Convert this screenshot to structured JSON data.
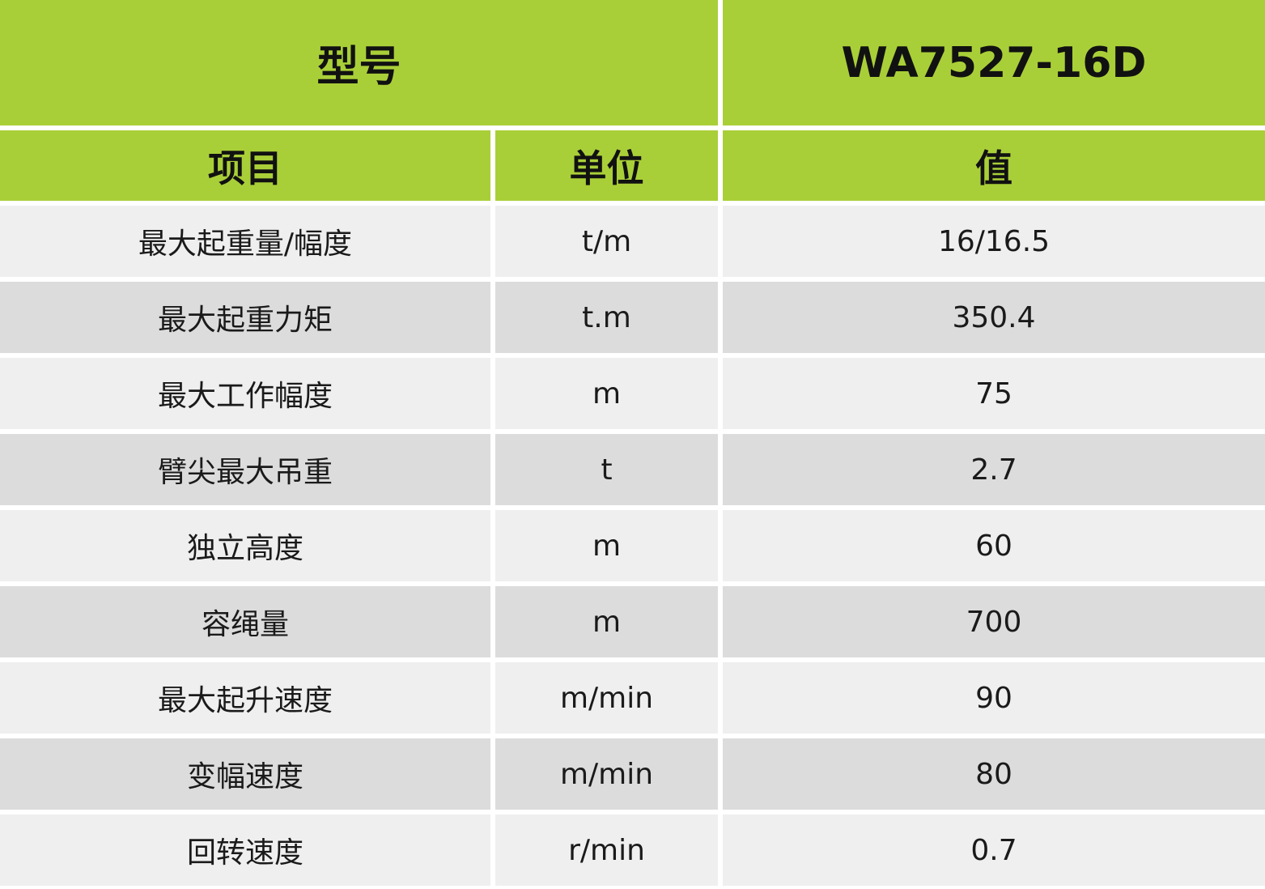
{
  "header": {
    "model_label": "型号",
    "model": "WA7527-16D"
  },
  "table": {
    "columns": [
      "项目",
      "单位",
      "值"
    ],
    "rows": [
      [
        "最大起重量/幅度",
        "t/m",
        "16/16.5"
      ],
      [
        "最大起重力矩",
        "t.m",
        "350.4"
      ],
      [
        "最大工作幅度",
        "m",
        "75"
      ],
      [
        "臂尖最大吊重",
        "t",
        "2.7"
      ],
      [
        "独立高度",
        "m",
        "60"
      ],
      [
        "容绳量",
        "m",
        "700"
      ],
      [
        "最大起升速度",
        "m/min",
        "90"
      ],
      [
        "变幅速度",
        "m/min",
        "80"
      ],
      [
        "回转速度",
        "r/min",
        "0.7"
      ]
    ]
  }
}
